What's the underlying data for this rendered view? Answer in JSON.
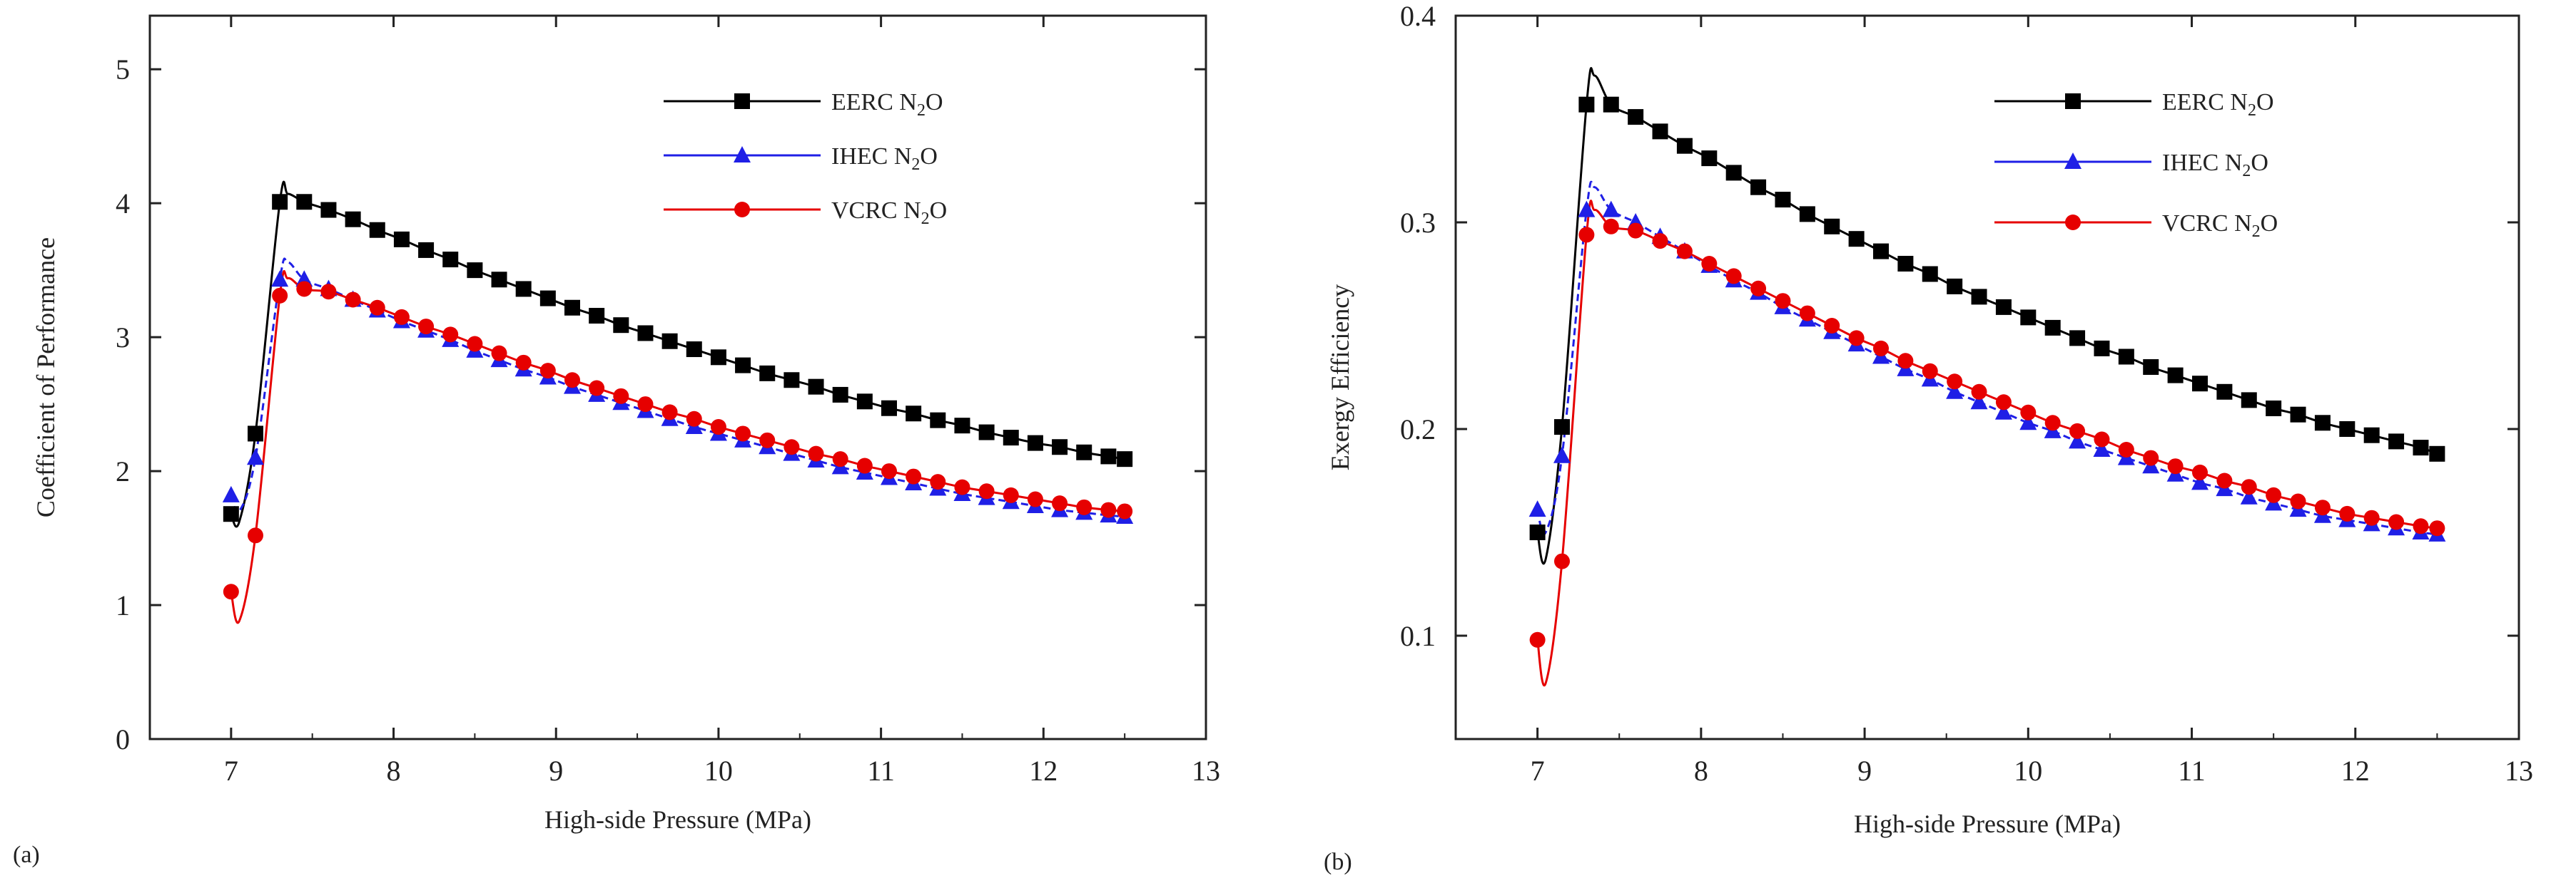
{
  "chart_data": [
    {
      "type": "line",
      "panel_label": "(a)",
      "xlabel": "High-side Pressure (MPa)",
      "ylabel": "Coefficient of Performance",
      "xlim": [
        6.5,
        13
      ],
      "ylim": [
        0,
        5.4
      ],
      "xticks": [
        7,
        8,
        9,
        10,
        11,
        12,
        13
      ],
      "yticks": [
        0,
        1,
        2,
        3,
        4,
        5
      ],
      "x": [
        7.0,
        7.15,
        7.3,
        7.45,
        7.6,
        7.75,
        7.9,
        8.05,
        8.2,
        8.35,
        8.5,
        8.65,
        8.8,
        8.95,
        9.1,
        9.25,
        9.4,
        9.55,
        9.7,
        9.85,
        10.0,
        10.15,
        10.3,
        10.45,
        10.6,
        10.75,
        10.9,
        11.05,
        11.2,
        11.35,
        11.5,
        11.65,
        11.8,
        11.95,
        12.1,
        12.25,
        12.4,
        12.5
      ],
      "series": [
        {
          "name": "EERC N2O",
          "legend_main": "EERC N",
          "legend_sub": "2",
          "legend_tail": "O",
          "color": "#000000",
          "marker": "square",
          "values": [
            1.68,
            2.28,
            4.01,
            4.01,
            3.95,
            3.88,
            3.8,
            3.73,
            3.65,
            3.58,
            3.5,
            3.43,
            3.36,
            3.29,
            3.22,
            3.16,
            3.09,
            3.03,
            2.97,
            2.91,
            2.85,
            2.79,
            2.73,
            2.68,
            2.63,
            2.57,
            2.52,
            2.47,
            2.43,
            2.38,
            2.34,
            2.29,
            2.25,
            2.21,
            2.18,
            2.14,
            2.11,
            2.09
          ],
          "curve_peak": {
            "x": 7.35,
            "y": 4.07
          },
          "curve_dip": {
            "x": 7.05,
            "y": 1.62
          }
        },
        {
          "name": "IHEC N2O",
          "legend_main": "IHEC N",
          "legend_sub": "2",
          "legend_tail": "O",
          "color": "#1f1fe6",
          "marker": "triangle",
          "values": [
            1.82,
            2.1,
            3.43,
            3.43,
            3.36,
            3.28,
            3.2,
            3.12,
            3.05,
            2.98,
            2.9,
            2.83,
            2.76,
            2.7,
            2.63,
            2.57,
            2.51,
            2.45,
            2.39,
            2.33,
            2.28,
            2.23,
            2.18,
            2.13,
            2.08,
            2.03,
            1.99,
            1.95,
            1.91,
            1.87,
            1.83,
            1.8,
            1.77,
            1.74,
            1.71,
            1.69,
            1.67,
            1.66
          ],
          "curve_peak": {
            "x": 7.35,
            "y": 3.56
          },
          "curve_dip": {
            "x": 7.05,
            "y": 1.7
          }
        },
        {
          "name": "VCRC N2O",
          "legend_main": "VCRC N",
          "legend_sub": "2",
          "legend_tail": "O",
          "color": "#e60000",
          "marker": "circle",
          "values": [
            1.1,
            1.52,
            3.31,
            3.36,
            3.34,
            3.28,
            3.22,
            3.15,
            3.08,
            3.02,
            2.95,
            2.88,
            2.81,
            2.75,
            2.68,
            2.62,
            2.56,
            2.5,
            2.44,
            2.39,
            2.33,
            2.28,
            2.23,
            2.18,
            2.13,
            2.09,
            2.04,
            2.0,
            1.96,
            1.92,
            1.88,
            1.85,
            1.82,
            1.79,
            1.76,
            1.73,
            1.71,
            1.7
          ],
          "curve_peak": {
            "x": 7.35,
            "y": 3.44
          },
          "curve_dip": {
            "x": 7.05,
            "y": 0.88
          }
        }
      ]
    },
    {
      "type": "line",
      "panel_label": "(b)",
      "xlabel": "High-side Pressure (MPa)",
      "ylabel": "Exergy Efficiency",
      "xlim": [
        6.5,
        13
      ],
      "ylim": [
        0.05,
        0.4
      ],
      "xticks": [
        7,
        8,
        9,
        10,
        11,
        12,
        13
      ],
      "yticks": [
        0.1,
        0.2,
        0.3,
        0.4
      ],
      "x": [
        7.0,
        7.15,
        7.3,
        7.45,
        7.6,
        7.75,
        7.9,
        8.05,
        8.2,
        8.35,
        8.5,
        8.65,
        8.8,
        8.95,
        9.1,
        9.25,
        9.4,
        9.55,
        9.7,
        9.85,
        10.0,
        10.15,
        10.3,
        10.45,
        10.6,
        10.75,
        10.9,
        11.05,
        11.2,
        11.35,
        11.5,
        11.65,
        11.8,
        11.95,
        12.1,
        12.25,
        12.4,
        12.5
      ],
      "series": [
        {
          "name": "EERC N2O",
          "legend_main": "EERC N",
          "legend_sub": "2",
          "legend_tail": "O",
          "color": "#000000",
          "marker": "square",
          "values": [
            0.15,
            0.201,
            0.357,
            0.357,
            0.351,
            0.344,
            0.337,
            0.331,
            0.324,
            0.317,
            0.311,
            0.304,
            0.298,
            0.292,
            0.286,
            0.28,
            0.275,
            0.269,
            0.264,
            0.259,
            0.254,
            0.249,
            0.244,
            0.239,
            0.235,
            0.23,
            0.226,
            0.222,
            0.218,
            0.214,
            0.21,
            0.207,
            0.203,
            0.2,
            0.197,
            0.194,
            0.191,
            0.188
          ],
          "curve_peak": {
            "x": 7.35,
            "y": 0.371
          },
          "curve_dip": {
            "x": 7.05,
            "y": 0.137
          }
        },
        {
          "name": "IHEC N2O",
          "legend_main": "IHEC N",
          "legend_sub": "2",
          "legend_tail": "O",
          "color": "#1f1fe6",
          "marker": "triangle",
          "values": [
            0.161,
            0.187,
            0.306,
            0.306,
            0.3,
            0.293,
            0.286,
            0.279,
            0.272,
            0.266,
            0.259,
            0.253,
            0.247,
            0.241,
            0.235,
            0.229,
            0.224,
            0.218,
            0.213,
            0.208,
            0.203,
            0.199,
            0.194,
            0.19,
            0.186,
            0.182,
            0.178,
            0.174,
            0.171,
            0.167,
            0.164,
            0.161,
            0.158,
            0.156,
            0.154,
            0.152,
            0.15,
            0.149
          ],
          "curve_peak": {
            "x": 7.35,
            "y": 0.317
          },
          "curve_dip": {
            "x": 7.05,
            "y": 0.15
          }
        },
        {
          "name": "VCRC N2O",
          "legend_main": "VCRC N",
          "legend_sub": "2",
          "legend_tail": "O",
          "color": "#e60000",
          "marker": "circle",
          "values": [
            0.098,
            0.136,
            0.294,
            0.298,
            0.296,
            0.291,
            0.286,
            0.28,
            0.274,
            0.268,
            0.262,
            0.256,
            0.25,
            0.244,
            0.239,
            0.233,
            0.228,
            0.223,
            0.218,
            0.213,
            0.208,
            0.203,
            0.199,
            0.195,
            0.19,
            0.186,
            0.182,
            0.179,
            0.175,
            0.172,
            0.168,
            0.165,
            0.162,
            0.159,
            0.157,
            0.155,
            0.153,
            0.152
          ],
          "curve_peak": {
            "x": 7.35,
            "y": 0.306
          },
          "curve_dip": {
            "x": 7.05,
            "y": 0.077
          }
        }
      ]
    }
  ]
}
